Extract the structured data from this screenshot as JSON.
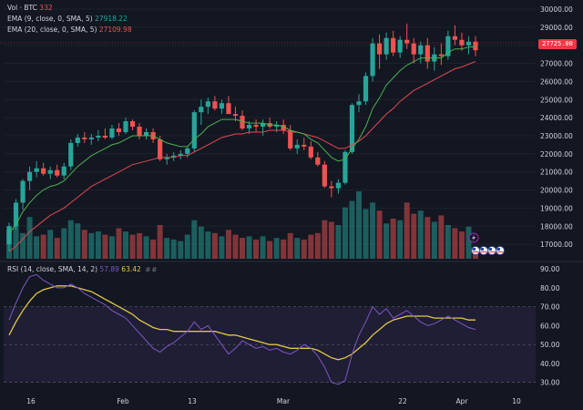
{
  "legend": {
    "vol_label": "Vol · BTC",
    "vol_value": "332",
    "ema9_label": "EMA (9, close, 0, SMA, 5)",
    "ema9_value": "27918.22",
    "ema20_label": "EMA (20, close, 0, SMA, 5)",
    "ema20_value": "27109.98",
    "rsi_label": "RSI (14, close, SMA, 14, 2)",
    "rsi_value": "57.89",
    "rsi_ma_value": "63.42",
    "rsi_extra": "ø ø"
  },
  "current_price": "27725.00",
  "colors": {
    "background": "#131722",
    "up": "#26a69a",
    "down": "#ef5350",
    "ema9": "#4caf50",
    "ema20": "#e04850",
    "rsi": "#7e57c2",
    "rsi_ma": "#e0c84a",
    "rsi_band": "#2a2445"
  },
  "icons": [
    "lightning-icon",
    "flag-us-icon"
  ],
  "chart_data": [
    {
      "type": "candlestick",
      "title": "",
      "y_ticks": [
        17000,
        18000,
        19000,
        20000,
        21000,
        22000,
        23000,
        24000,
        25000,
        26000,
        27000,
        28000,
        29000,
        30000
      ],
      "ylim": [
        16200,
        30200
      ],
      "x_tick_labels": [
        "16",
        "Feb",
        "13",
        "Mar",
        "22",
        "Apr",
        "10"
      ],
      "grid": true,
      "candles": [
        {
          "o": 17000,
          "h": 18200,
          "l": 16600,
          "c": 18000
        },
        {
          "o": 18000,
          "h": 19500,
          "l": 17800,
          "c": 19300
        },
        {
          "o": 19300,
          "h": 20600,
          "l": 18900,
          "c": 20500
        },
        {
          "o": 20500,
          "h": 21300,
          "l": 20000,
          "c": 21000
        },
        {
          "o": 21000,
          "h": 21600,
          "l": 20700,
          "c": 21200
        },
        {
          "o": 21200,
          "h": 21500,
          "l": 20800,
          "c": 20900
        },
        {
          "o": 20900,
          "h": 21300,
          "l": 20600,
          "c": 21100
        },
        {
          "o": 21100,
          "h": 21400,
          "l": 20700,
          "c": 20800
        },
        {
          "o": 20800,
          "h": 21500,
          "l": 20600,
          "c": 21300
        },
        {
          "o": 21300,
          "h": 22800,
          "l": 21100,
          "c": 22600
        },
        {
          "o": 22600,
          "h": 23100,
          "l": 22400,
          "c": 22900
        },
        {
          "o": 22900,
          "h": 23200,
          "l": 22600,
          "c": 22800
        },
        {
          "o": 22800,
          "h": 23100,
          "l": 22500,
          "c": 22900
        },
        {
          "o": 22900,
          "h": 23300,
          "l": 22700,
          "c": 23000
        },
        {
          "o": 23000,
          "h": 23400,
          "l": 22800,
          "c": 22900
        },
        {
          "o": 22900,
          "h": 23600,
          "l": 22800,
          "c": 23400
        },
        {
          "o": 23400,
          "h": 23700,
          "l": 23000,
          "c": 23200
        },
        {
          "o": 23200,
          "h": 24000,
          "l": 23100,
          "c": 23800
        },
        {
          "o": 23800,
          "h": 23900,
          "l": 23300,
          "c": 23500
        },
        {
          "o": 23500,
          "h": 23700,
          "l": 22800,
          "c": 23000
        },
        {
          "o": 23000,
          "h": 23400,
          "l": 22800,
          "c": 23200
        },
        {
          "o": 23200,
          "h": 23400,
          "l": 22600,
          "c": 22800
        },
        {
          "o": 22800,
          "h": 23000,
          "l": 21600,
          "c": 21700
        },
        {
          "o": 21700,
          "h": 22000,
          "l": 21400,
          "c": 21800
        },
        {
          "o": 21800,
          "h": 22100,
          "l": 21600,
          "c": 21900
        },
        {
          "o": 21900,
          "h": 22200,
          "l": 21700,
          "c": 22000
        },
        {
          "o": 22000,
          "h": 22400,
          "l": 21800,
          "c": 22300
        },
        {
          "o": 22300,
          "h": 24400,
          "l": 22100,
          "c": 24300
        },
        {
          "o": 24300,
          "h": 25000,
          "l": 23600,
          "c": 24600
        },
        {
          "o": 24600,
          "h": 25100,
          "l": 24200,
          "c": 24900
        },
        {
          "o": 24900,
          "h": 25200,
          "l": 24400,
          "c": 24500
        },
        {
          "o": 24500,
          "h": 25000,
          "l": 24200,
          "c": 24800
        },
        {
          "o": 24800,
          "h": 25200,
          "l": 24300,
          "c": 24200
        },
        {
          "o": 24200,
          "h": 24600,
          "l": 23800,
          "c": 24100
        },
        {
          "o": 24100,
          "h": 24400,
          "l": 23300,
          "c": 23400
        },
        {
          "o": 23400,
          "h": 23800,
          "l": 23100,
          "c": 23600
        },
        {
          "o": 23600,
          "h": 23900,
          "l": 23200,
          "c": 23500
        },
        {
          "o": 23500,
          "h": 23900,
          "l": 23000,
          "c": 23700
        },
        {
          "o": 23700,
          "h": 24000,
          "l": 23400,
          "c": 23500
        },
        {
          "o": 23500,
          "h": 23800,
          "l": 23200,
          "c": 23600
        },
        {
          "o": 23600,
          "h": 23900,
          "l": 23100,
          "c": 23300
        },
        {
          "o": 23300,
          "h": 23600,
          "l": 22200,
          "c": 22300
        },
        {
          "o": 22300,
          "h": 22800,
          "l": 22000,
          "c": 22500
        },
        {
          "o": 22500,
          "h": 22900,
          "l": 22200,
          "c": 22400
        },
        {
          "o": 22400,
          "h": 22700,
          "l": 21700,
          "c": 21800
        },
        {
          "o": 21800,
          "h": 22100,
          "l": 21300,
          "c": 21400
        },
        {
          "o": 21400,
          "h": 21600,
          "l": 20100,
          "c": 20200
        },
        {
          "o": 20200,
          "h": 20500,
          "l": 19600,
          "c": 20100
        },
        {
          "o": 20100,
          "h": 20600,
          "l": 19800,
          "c": 20400
        },
        {
          "o": 20400,
          "h": 22200,
          "l": 20300,
          "c": 22100
        },
        {
          "o": 22100,
          "h": 24800,
          "l": 22000,
          "c": 24700
        },
        {
          "o": 24700,
          "h": 25300,
          "l": 24300,
          "c": 24900
        },
        {
          "o": 24900,
          "h": 26500,
          "l": 24700,
          "c": 26300
        },
        {
          "o": 26300,
          "h": 28400,
          "l": 26000,
          "c": 28100
        },
        {
          "o": 28100,
          "h": 28600,
          "l": 26700,
          "c": 27500
        },
        {
          "o": 27500,
          "h": 28700,
          "l": 27200,
          "c": 28400
        },
        {
          "o": 28400,
          "h": 28800,
          "l": 27400,
          "c": 27600
        },
        {
          "o": 27600,
          "h": 28500,
          "l": 27300,
          "c": 28300
        },
        {
          "o": 28300,
          "h": 29200,
          "l": 27800,
          "c": 28100
        },
        {
          "o": 28100,
          "h": 28400,
          "l": 27000,
          "c": 27500
        },
        {
          "o": 27500,
          "h": 28200,
          "l": 27000,
          "c": 28000
        },
        {
          "o": 28000,
          "h": 28400,
          "l": 26700,
          "c": 27100
        },
        {
          "o": 27100,
          "h": 27900,
          "l": 26600,
          "c": 27500
        },
        {
          "o": 27500,
          "h": 28100,
          "l": 26900,
          "c": 27400
        },
        {
          "o": 27400,
          "h": 28800,
          "l": 27200,
          "c": 28500
        },
        {
          "o": 28500,
          "h": 29100,
          "l": 28000,
          "c": 28300
        },
        {
          "o": 28300,
          "h": 28700,
          "l": 27700,
          "c": 28000
        },
        {
          "o": 28000,
          "h": 28500,
          "l": 27500,
          "c": 28200
        },
        {
          "o": 28200,
          "h": 28500,
          "l": 27400,
          "c": 27725
        }
      ],
      "volume": [
        18,
        21,
        16,
        26,
        14,
        15,
        18,
        13,
        19,
        24,
        22,
        18,
        16,
        17,
        15,
        14,
        19,
        17,
        15,
        16,
        14,
        12,
        21,
        13,
        12,
        11,
        15,
        24,
        20,
        17,
        16,
        14,
        18,
        15,
        13,
        14,
        12,
        14,
        11,
        13,
        12,
        16,
        13,
        12,
        15,
        16,
        24,
        23,
        21,
        32,
        36,
        42,
        31,
        35,
        30,
        22,
        25,
        24,
        35,
        28,
        30,
        26,
        23,
        27,
        21,
        19,
        17,
        20,
        3
      ],
      "ema9": [
        17600,
        18100,
        18800,
        19300,
        19700,
        20000,
        20200,
        20300,
        20500,
        20900,
        21300,
        21600,
        21900,
        22100,
        22300,
        22500,
        22600,
        22800,
        23000,
        23000,
        23000,
        23000,
        22800,
        22600,
        22500,
        22400,
        22400,
        22800,
        23100,
        23500,
        23700,
        23900,
        23900,
        23900,
        23800,
        23700,
        23700,
        23700,
        23600,
        23600,
        23500,
        23300,
        23200,
        23100,
        22800,
        22600,
        22200,
        21800,
        21600,
        21700,
        22300,
        22800,
        23500,
        24500,
        25100,
        25800,
        26200,
        26600,
        26900,
        27100,
        27300,
        27300,
        27300,
        27300,
        27600,
        27800,
        27800,
        27900,
        27918
      ],
      "ema20": [
        16600,
        16900,
        17300,
        17700,
        18000,
        18300,
        18600,
        18800,
        19000,
        19300,
        19600,
        19900,
        20200,
        20400,
        20600,
        20800,
        21000,
        21200,
        21400,
        21500,
        21600,
        21700,
        21800,
        21800,
        21800,
        21900,
        21900,
        22100,
        22300,
        22500,
        22700,
        22900,
        23000,
        23100,
        23100,
        23200,
        23200,
        23200,
        23300,
        23300,
        23300,
        23200,
        23200,
        23100,
        23000,
        22900,
        22700,
        22500,
        22300,
        22300,
        22500,
        22700,
        23000,
        23400,
        23800,
        24200,
        24500,
        24900,
        25200,
        25500,
        25700,
        25900,
        26100,
        26300,
        26500,
        26700,
        26800,
        26950,
        27110
      ]
    },
    {
      "type": "line",
      "title": "RSI",
      "y_ticks": [
        30,
        40,
        50,
        60,
        70,
        80,
        90
      ],
      "ylim": [
        26,
        92
      ],
      "bands": [
        30,
        50,
        70
      ],
      "series": [
        {
          "name": "RSI",
          "values": [
            63,
            72,
            80,
            86,
            87,
            84,
            82,
            80,
            80,
            82,
            80,
            77,
            75,
            73,
            71,
            68,
            66,
            64,
            60,
            56,
            52,
            48,
            46,
            49,
            51,
            54,
            57,
            62,
            58,
            60,
            55,
            50,
            45,
            48,
            52,
            50,
            48,
            49,
            47,
            48,
            46,
            45,
            47,
            50,
            48,
            44,
            38,
            30,
            29,
            31,
            45,
            55,
            62,
            70,
            66,
            69,
            64,
            66,
            68,
            65,
            62,
            60,
            61,
            63,
            65,
            63,
            61,
            59,
            58
          ]
        },
        {
          "name": "RSI MA",
          "values": [
            55,
            62,
            68,
            73,
            77,
            79,
            80,
            81,
            81,
            81,
            80,
            79,
            78,
            76,
            74,
            72,
            70,
            68,
            66,
            63,
            61,
            59,
            58,
            58,
            57,
            57,
            57,
            57,
            57,
            57,
            57,
            56,
            55,
            55,
            54,
            53,
            52,
            51,
            50,
            50,
            49,
            48,
            48,
            48,
            48,
            47,
            45,
            43,
            42,
            43,
            45,
            48,
            51,
            55,
            58,
            61,
            63,
            64,
            65,
            65,
            65,
            65,
            64,
            64,
            64,
            64,
            64,
            63,
            63
          ]
        }
      ]
    }
  ]
}
